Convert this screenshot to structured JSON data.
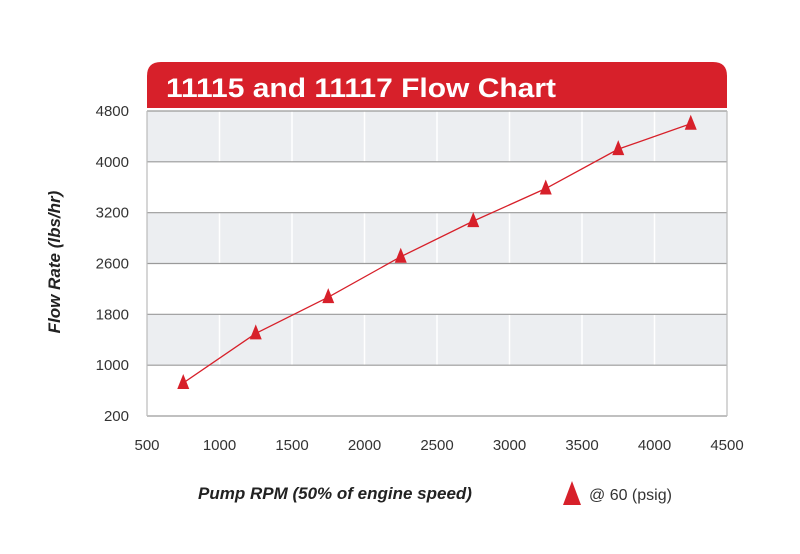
{
  "chart_data": {
    "type": "line",
    "title": "11115 and 11117 Flow Chart",
    "xlabel": "Pump RPM (50% of engine speed)",
    "ylabel": "Flow Rate (lbs/hr)",
    "xlim": [
      500,
      4500
    ],
    "x_ticks": [
      "500",
      "1000",
      "1500",
      "2000",
      "2500",
      "3000",
      "3500",
      "4000",
      "4500"
    ],
    "y_ticks": [
      "4800",
      "4000",
      "3200",
      "2600",
      "1800",
      "1000",
      "200"
    ],
    "grid": true,
    "legend_position": "bottom-right",
    "series": [
      {
        "name": "@ 60 (psig)",
        "marker": "triangle",
        "color": "#d7202a",
        "x": [
          750,
          1250,
          1750,
          2250,
          2750,
          3250,
          3750,
          4250
        ],
        "y": [
          720,
          1500,
          2070,
          2680,
          3100,
          3580,
          4200,
          4600
        ]
      }
    ],
    "colors": {
      "accent": "#d7202a",
      "band": "#eceef1",
      "gridline": "#9a9a9a"
    }
  }
}
